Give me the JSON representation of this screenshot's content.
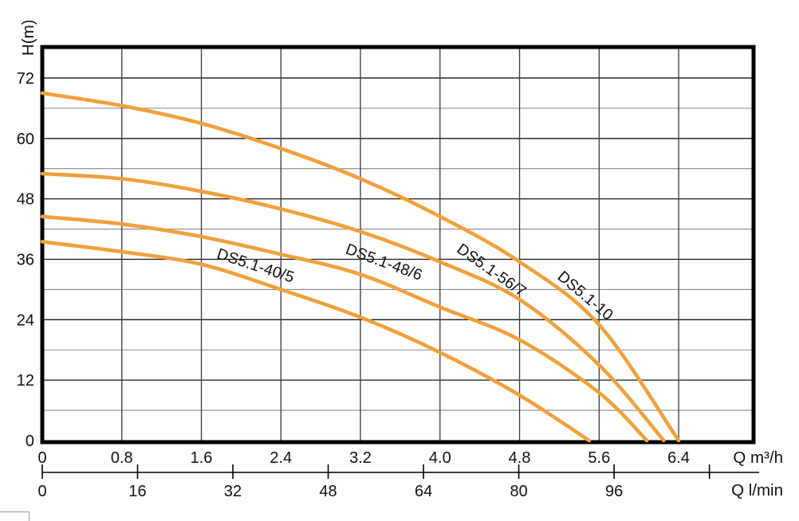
{
  "page": {
    "background": "#ffffff",
    "decoration": {
      "corner_box_color": "#b4b4b4"
    }
  },
  "chart_data": {
    "type": "line",
    "title": "",
    "ylabel": "H(m)",
    "xlabel_m3h": "Q m³/h",
    "xlabel_lmin": "Q l/min",
    "grid": true,
    "curve_color": "#F0A13C",
    "grid_major_color": "#1a1a1a",
    "grid_minor_color": "#8a8a8a",
    "grid_vertical_color": "#3a3a3a",
    "border_color": "#000000",
    "y_axis": {
      "range": [
        0,
        78
      ],
      "minor_step": 6,
      "tick_values": [
        0,
        12,
        24,
        36,
        48,
        60,
        72
      ],
      "tick_labels": [
        "0",
        "12",
        "24",
        "36",
        "48",
        "60",
        "72"
      ]
    },
    "x_axis_m3h": {
      "range": [
        0,
        7.15
      ],
      "tick_values": [
        0,
        0.8,
        1.6,
        2.4,
        3.2,
        4.0,
        4.8,
        5.6,
        6.4
      ],
      "tick_labels": [
        "0",
        "0.8",
        "1.6",
        "2.4",
        "3.2",
        "4.0",
        "4.8",
        "5.6",
        "6.4"
      ]
    },
    "x_axis_lmin": {
      "tick_values": [
        0,
        16,
        32,
        48,
        64,
        80,
        96
      ],
      "tick_labels": [
        "0",
        "16",
        "32",
        "48",
        "64",
        "80",
        "96"
      ],
      "unlabeled_tick_value": 112
    },
    "series": [
      {
        "name": "DS5.1-40/5",
        "points": [
          [
            0,
            39.5
          ],
          [
            0.8,
            37.5
          ],
          [
            1.6,
            35
          ],
          [
            2.4,
            30
          ],
          [
            3.2,
            24.5
          ],
          [
            4.0,
            17.5
          ],
          [
            4.8,
            9
          ],
          [
            5.5,
            0
          ]
        ],
        "label": {
          "q": 2.13,
          "h": 33.8,
          "angle": 18
        }
      },
      {
        "name": "DS5.1-48/6",
        "points": [
          [
            0,
            44.5
          ],
          [
            0.8,
            43
          ],
          [
            1.6,
            40.5
          ],
          [
            2.4,
            37
          ],
          [
            3.2,
            33
          ],
          [
            4.0,
            26.5
          ],
          [
            4.8,
            20
          ],
          [
            5.6,
            9.5
          ],
          [
            6.08,
            0
          ]
        ],
        "label": {
          "q": 3.42,
          "h": 34.5,
          "angle": 20
        }
      },
      {
        "name": "DS5.1-56/7",
        "points": [
          [
            0,
            53
          ],
          [
            0.8,
            52
          ],
          [
            1.6,
            49.5
          ],
          [
            2.4,
            46
          ],
          [
            3.2,
            41.5
          ],
          [
            4.0,
            35.5
          ],
          [
            4.8,
            28
          ],
          [
            5.6,
            15
          ],
          [
            6.25,
            0
          ]
        ],
        "label": {
          "q": 4.49,
          "h": 33,
          "angle": 35
        }
      },
      {
        "name": "DS5.1-10",
        "points": [
          [
            0,
            69
          ],
          [
            0.8,
            66.5
          ],
          [
            1.6,
            63
          ],
          [
            2.4,
            58
          ],
          [
            3.2,
            52
          ],
          [
            4.0,
            44.5
          ],
          [
            4.8,
            35.5
          ],
          [
            5.6,
            23
          ],
          [
            6.4,
            0
          ]
        ],
        "label": {
          "q": 5.43,
          "h": 28,
          "angle": 40
        }
      }
    ]
  }
}
